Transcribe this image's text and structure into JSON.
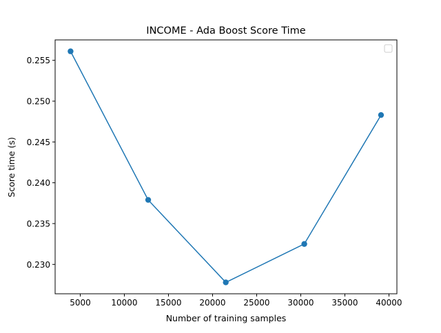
{
  "chart_data": {
    "type": "line",
    "title": "INCOME - Ada Boost Score Time",
    "xlabel": "Number of training samples",
    "ylabel": "Score time (s)",
    "xlim": [
      2150,
      40900
    ],
    "ylim": [
      0.2264,
      0.2575
    ],
    "xticks": [
      5000,
      10000,
      15000,
      20000,
      25000,
      30000,
      35000,
      40000
    ],
    "xtick_labels": [
      "5000",
      "10000",
      "15000",
      "20000",
      "25000",
      "30000",
      "35000",
      "40000"
    ],
    "yticks": [
      0.23,
      0.235,
      0.24,
      0.245,
      0.25,
      0.255
    ],
    "ytick_labels": [
      "0.230",
      "0.235",
      "0.240",
      "0.245",
      "0.250",
      "0.255"
    ],
    "grid": false,
    "legend": {
      "placement": "upper right",
      "entries": []
    },
    "series": [
      {
        "color": "#1f77b4",
        "marker": "circle",
        "x": [
          3900,
          12700,
          21500,
          30400,
          39100
        ],
        "y": [
          0.2561,
          0.2379,
          0.2278,
          0.2325,
          0.2483
        ]
      }
    ]
  }
}
